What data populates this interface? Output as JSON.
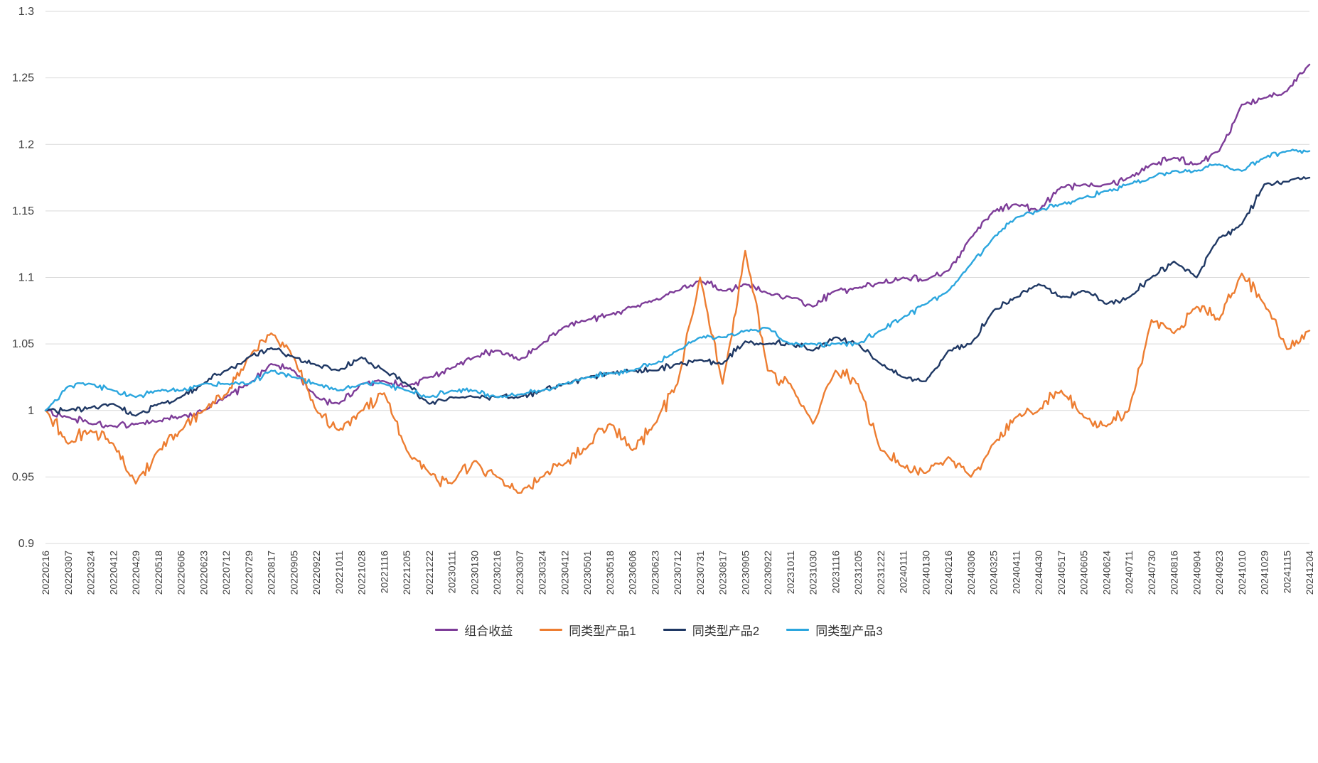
{
  "chart_data": {
    "type": "line",
    "title": "",
    "xlabel": "",
    "ylabel": "",
    "background": "#FFFFFF",
    "grid": "horizontal",
    "grid_color": "#D9D9D9",
    "axis_color": "#404040",
    "legend_position": "bottom",
    "ylim": [
      0.9,
      1.3
    ],
    "yticks": [
      {
        "value": 0.9,
        "label": "0.9"
      },
      {
        "value": 0.95,
        "label": "0.95"
      },
      {
        "value": 1.0,
        "label": "1"
      },
      {
        "value": 1.05,
        "label": "1.05"
      },
      {
        "value": 1.1,
        "label": "1.1"
      },
      {
        "value": 1.15,
        "label": "1.15"
      },
      {
        "value": 1.2,
        "label": "1.2"
      },
      {
        "value": 1.25,
        "label": "1.25"
      },
      {
        "value": 1.3,
        "label": "1.3"
      }
    ],
    "x": [
      "20220216",
      "20220307",
      "20220324",
      "20220412",
      "20220429",
      "20220518",
      "20220606",
      "20220623",
      "20220712",
      "20220729",
      "20220817",
      "20220905",
      "20220922",
      "20221011",
      "20221028",
      "20221116",
      "20221205",
      "20221222",
      "20230111",
      "20230130",
      "20230216",
      "20230307",
      "20230324",
      "20230412",
      "20230501",
      "20230518",
      "20230606",
      "20230623",
      "20230712",
      "20230731",
      "20230817",
      "20230905",
      "20230922",
      "20231011",
      "20231030",
      "20231116",
      "20231205",
      "20231222",
      "20240111",
      "20240130",
      "20240216",
      "20240306",
      "20240325",
      "20240411",
      "20240430",
      "20240517",
      "20240605",
      "20240624",
      "20240711",
      "20240730",
      "20240816",
      "20240904",
      "20240923",
      "20241010",
      "20241029",
      "20241115",
      "20241204"
    ],
    "series": [
      {
        "name": "组合收益",
        "color": "#7D3C98",
        "values": [
          1.0,
          0.995,
          0.99,
          0.988,
          0.99,
          0.992,
          0.995,
          1.0,
          1.01,
          1.02,
          1.035,
          1.03,
          1.01,
          1.005,
          1.02,
          1.022,
          1.018,
          1.025,
          1.032,
          1.04,
          1.045,
          1.038,
          1.05,
          1.063,
          1.068,
          1.072,
          1.078,
          1.083,
          1.09,
          1.098,
          1.09,
          1.095,
          1.088,
          1.085,
          1.078,
          1.09,
          1.092,
          1.096,
          1.1,
          1.098,
          1.105,
          1.13,
          1.15,
          1.155,
          1.15,
          1.168,
          1.17,
          1.17,
          1.175,
          1.185,
          1.19,
          1.185,
          1.195,
          1.23,
          1.235,
          1.24,
          1.26
        ]
      },
      {
        "name": "同类型产品1",
        "color": "#ED7D31",
        "values": [
          1.0,
          0.975,
          0.985,
          0.975,
          0.945,
          0.97,
          0.985,
          1.0,
          1.012,
          1.04,
          1.058,
          1.04,
          1.0,
          0.985,
          1.0,
          1.013,
          0.97,
          0.953,
          0.945,
          0.962,
          0.95,
          0.938,
          0.95,
          0.96,
          0.972,
          0.99,
          0.97,
          0.99,
          1.02,
          1.1,
          1.02,
          1.12,
          1.03,
          1.02,
          0.99,
          1.03,
          1.02,
          0.97,
          0.958,
          0.953,
          0.965,
          0.95,
          0.975,
          0.995,
          1.0,
          1.015,
          0.995,
          0.988,
          1.0,
          1.068,
          1.058,
          1.078,
          1.068,
          1.103,
          1.08,
          1.046,
          1.06
        ]
      },
      {
        "name": "同类型产品2",
        "color": "#1F3864",
        "values": [
          1.0,
          1.0,
          1.002,
          1.005,
          0.996,
          1.005,
          1.01,
          1.02,
          1.03,
          1.04,
          1.047,
          1.04,
          1.034,
          1.03,
          1.04,
          1.03,
          1.02,
          1.005,
          1.01,
          1.01,
          1.01,
          1.01,
          1.015,
          1.02,
          1.025,
          1.028,
          1.03,
          1.03,
          1.035,
          1.038,
          1.035,
          1.052,
          1.05,
          1.05,
          1.045,
          1.055,
          1.05,
          1.035,
          1.025,
          1.022,
          1.045,
          1.05,
          1.075,
          1.085,
          1.095,
          1.085,
          1.09,
          1.08,
          1.085,
          1.1,
          1.112,
          1.1,
          1.13,
          1.14,
          1.17,
          1.172,
          1.175
        ]
      },
      {
        "name": "同类型产品3",
        "color": "#2BA6DE",
        "values": [
          1.0,
          1.018,
          1.02,
          1.015,
          1.01,
          1.015,
          1.015,
          1.02,
          1.02,
          1.02,
          1.03,
          1.025,
          1.02,
          1.015,
          1.02,
          1.02,
          1.015,
          1.01,
          1.015,
          1.015,
          1.01,
          1.012,
          1.015,
          1.02,
          1.025,
          1.028,
          1.03,
          1.035,
          1.045,
          1.055,
          1.055,
          1.06,
          1.062,
          1.05,
          1.05,
          1.05,
          1.05,
          1.06,
          1.07,
          1.08,
          1.09,
          1.11,
          1.13,
          1.145,
          1.15,
          1.155,
          1.16,
          1.165,
          1.17,
          1.175,
          1.18,
          1.18,
          1.185,
          1.18,
          1.19,
          1.195,
          1.195
        ]
      }
    ]
  }
}
